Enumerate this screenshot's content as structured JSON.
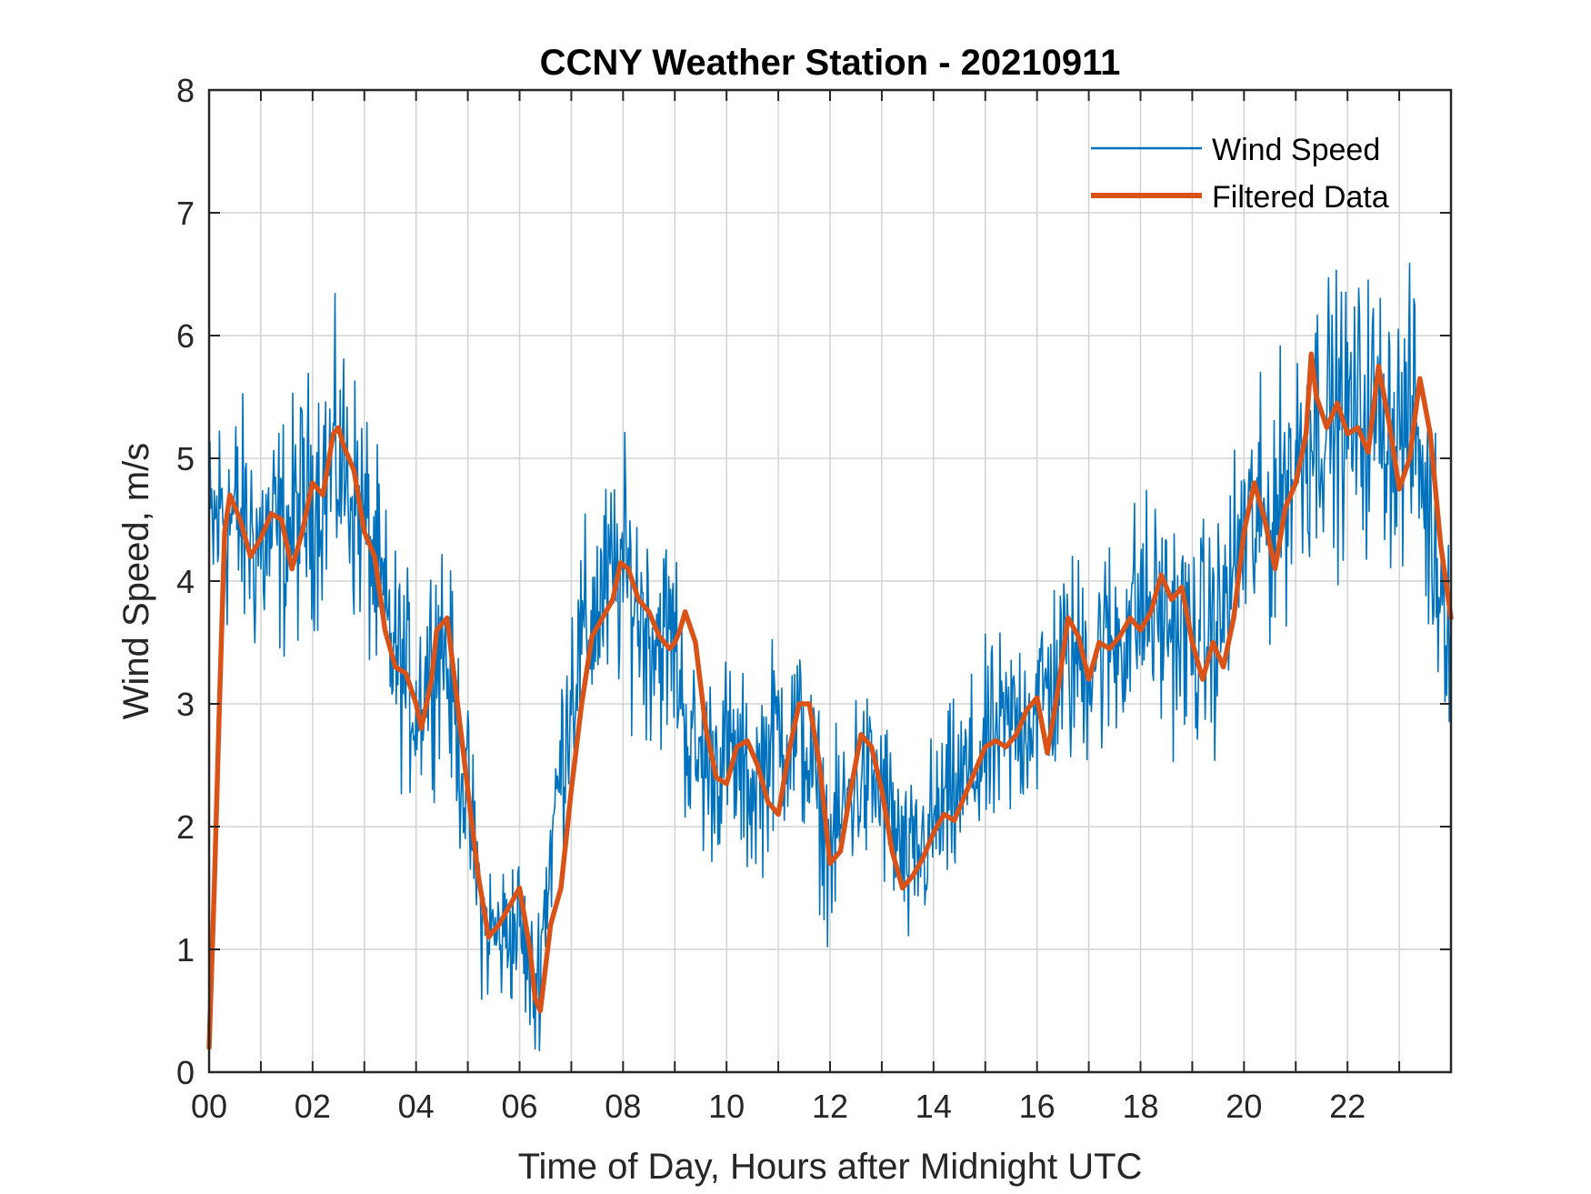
{
  "chart_data": {
    "type": "line",
    "title": "CCNY Weather Station - 20210911",
    "xlabel": "Time of Day, Hours after Midnight UTC",
    "ylabel": "Wind Speed, m/s",
    "xlim": [
      0,
      24
    ],
    "ylim": [
      0,
      8
    ],
    "grid": true,
    "legend_position": "top-right",
    "x_tick_values": [
      0,
      2,
      4,
      6,
      8,
      10,
      12,
      14,
      16,
      18,
      20,
      22
    ],
    "x_tick_labels": [
      "00",
      "02",
      "04",
      "06",
      "08",
      "10",
      "12",
      "14",
      "16",
      "18",
      "20",
      "22"
    ],
    "x_grid_step": 1,
    "y_tick_values": [
      0,
      1,
      2,
      3,
      4,
      5,
      6,
      7,
      8
    ],
    "y_tick_labels": [
      "0",
      "1",
      "2",
      "3",
      "4",
      "5",
      "6",
      "7",
      "8"
    ],
    "series": [
      {
        "name": "Wind Speed",
        "color": "#0072BD",
        "style": "thin",
        "noise_amplitude": 0.55,
        "samples_per_hour": 60,
        "x": [
          0,
          0.25,
          0.5,
          1.0,
          1.5,
          2.0,
          2.5,
          3.0,
          3.5,
          4.0,
          4.5,
          5.0,
          5.3,
          5.6,
          6.0,
          6.3,
          6.6,
          7.0,
          7.5,
          8.0,
          8.5,
          9.0,
          9.3,
          9.6,
          10.0,
          10.5,
          11.0,
          11.5,
          12.0,
          12.5,
          13.0,
          13.5,
          14.0,
          14.5,
          15.0,
          15.5,
          16.0,
          16.5,
          17.0,
          17.5,
          18.0,
          18.5,
          19.0,
          19.5,
          20.0,
          20.5,
          21.0,
          21.5,
          22.0,
          22.5,
          23.0,
          23.3,
          23.6,
          24.0
        ],
        "y": [
          4.3,
          4.6,
          4.5,
          4.3,
          4.4,
          4.7,
          5.0,
          4.5,
          3.5,
          3.0,
          3.6,
          2.2,
          1.2,
          1.1,
          1.2,
          0.6,
          1.8,
          3.2,
          3.8,
          4.1,
          3.6,
          3.5,
          2.6,
          2.5,
          2.6,
          2.3,
          2.8,
          2.7,
          1.8,
          2.4,
          2.3,
          1.6,
          2.0,
          2.3,
          2.6,
          2.8,
          3.0,
          3.3,
          3.4,
          3.5,
          3.8,
          3.7,
          3.5,
          3.6,
          4.4,
          4.5,
          5.0,
          5.4,
          5.3,
          5.4,
          5.2,
          5.3,
          4.4,
          3.7
        ]
      },
      {
        "name": "Filtered Data",
        "color": "#D95319",
        "style": "thick",
        "x": [
          0.0,
          0.1,
          0.2,
          0.3,
          0.4,
          0.5,
          0.6,
          0.8,
          1.0,
          1.2,
          1.4,
          1.6,
          1.8,
          2.0,
          2.2,
          2.4,
          2.5,
          2.6,
          2.8,
          3.0,
          3.2,
          3.4,
          3.6,
          3.8,
          4.0,
          4.1,
          4.2,
          4.3,
          4.4,
          4.6,
          4.8,
          5.0,
          5.2,
          5.4,
          5.6,
          5.8,
          6.0,
          6.2,
          6.3,
          6.4,
          6.6,
          6.8,
          7.0,
          7.2,
          7.4,
          7.6,
          7.8,
          7.95,
          8.1,
          8.3,
          8.5,
          8.7,
          8.9,
          9.0,
          9.1,
          9.2,
          9.4,
          9.6,
          9.8,
          10.0,
          10.2,
          10.4,
          10.6,
          10.8,
          11.0,
          11.2,
          11.4,
          11.6,
          11.8,
          12.0,
          12.2,
          12.4,
          12.6,
          12.8,
          13.0,
          13.2,
          13.4,
          13.6,
          13.8,
          14.0,
          14.2,
          14.4,
          14.6,
          14.8,
          15.0,
          15.2,
          15.4,
          15.6,
          15.8,
          16.0,
          16.2,
          16.4,
          16.6,
          16.8,
          17.0,
          17.2,
          17.4,
          17.6,
          17.8,
          18.0,
          18.2,
          18.4,
          18.6,
          18.8,
          19.0,
          19.2,
          19.4,
          19.6,
          19.8,
          20.0,
          20.2,
          20.4,
          20.6,
          20.8,
          21.0,
          21.2,
          21.3,
          21.4,
          21.6,
          21.8,
          22.0,
          22.2,
          22.4,
          22.6,
          22.8,
          23.0,
          23.2,
          23.4,
          23.6,
          23.8,
          24.0
        ],
        "y": [
          0.2,
          1.5,
          3.0,
          4.4,
          4.7,
          4.6,
          4.5,
          4.2,
          4.35,
          4.55,
          4.5,
          4.1,
          4.4,
          4.8,
          4.7,
          5.2,
          5.25,
          5.1,
          4.9,
          4.4,
          4.2,
          3.6,
          3.3,
          3.25,
          3.0,
          2.8,
          3.0,
          3.2,
          3.6,
          3.7,
          3.0,
          2.3,
          1.6,
          1.1,
          1.2,
          1.35,
          1.5,
          1.0,
          0.6,
          0.5,
          1.2,
          1.5,
          2.3,
          3.0,
          3.55,
          3.7,
          3.85,
          4.15,
          4.1,
          3.85,
          3.75,
          3.55,
          3.45,
          3.5,
          3.6,
          3.75,
          3.5,
          2.8,
          2.4,
          2.35,
          2.65,
          2.7,
          2.5,
          2.2,
          2.1,
          2.6,
          3.0,
          3.0,
          2.5,
          1.7,
          1.8,
          2.3,
          2.75,
          2.65,
          2.3,
          1.8,
          1.5,
          1.6,
          1.75,
          1.95,
          2.1,
          2.05,
          2.25,
          2.45,
          2.65,
          2.7,
          2.65,
          2.75,
          2.95,
          3.05,
          2.6,
          3.1,
          3.7,
          3.55,
          3.2,
          3.5,
          3.45,
          3.55,
          3.7,
          3.6,
          3.75,
          4.05,
          3.85,
          3.95,
          3.5,
          3.2,
          3.5,
          3.3,
          3.7,
          4.4,
          4.8,
          4.5,
          4.1,
          4.6,
          4.8,
          5.2,
          5.85,
          5.5,
          5.25,
          5.45,
          5.2,
          5.25,
          5.05,
          5.75,
          5.3,
          4.75,
          5.0,
          5.65,
          5.2,
          4.3,
          3.7
        ]
      }
    ]
  }
}
